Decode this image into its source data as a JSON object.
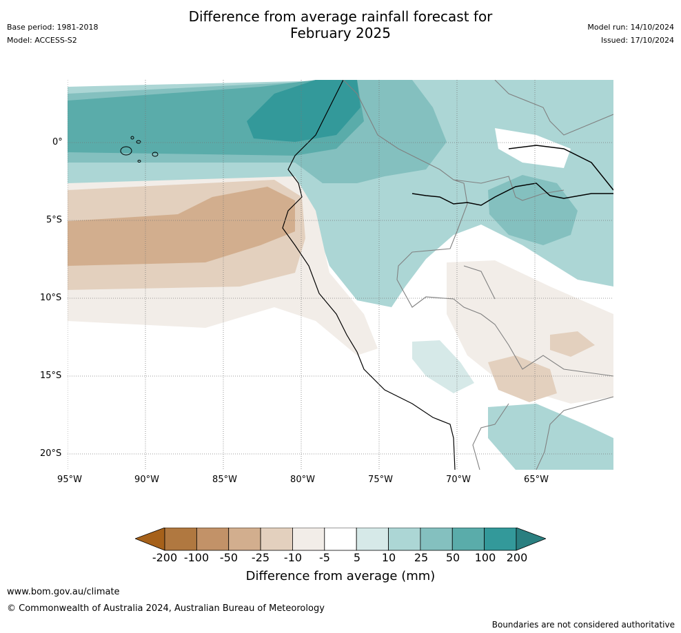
{
  "header": {
    "base_period": "Base period: 1981-2018",
    "model": "Model: ACCESS-S2",
    "title_line1": "Difference from average rainfall forecast for",
    "title_line2": "February 2025",
    "model_run": "Model run: 14/10/2024",
    "issued": "Issued: 17/10/2024"
  },
  "map": {
    "lat_labels": [
      "0°",
      "5°S",
      "10°S",
      "15°S",
      "20°S"
    ],
    "lon_labels": [
      "95°W",
      "90°W",
      "85°W",
      "80°W",
      "75°W",
      "70°W",
      "65°W"
    ]
  },
  "colorbar": {
    "tick_labels": [
      "-200",
      "-100",
      "-50",
      "-25",
      "-10",
      "-5",
      "5",
      "10",
      "25",
      "50",
      "100",
      "200"
    ],
    "colors": [
      "#a6611a",
      "#b07840",
      "#c29268",
      "#d2ae8e",
      "#e3d0be",
      "#f2ede8",
      "#ffffff",
      "#d6e9e8",
      "#acd6d5",
      "#84c0bf",
      "#5aacaa",
      "#33999a",
      "#2a7f80"
    ],
    "label": "Difference from average (mm)"
  },
  "footer": {
    "url": "www.bom.gov.au/climate",
    "copyright": "© Commonwealth of Australia 2024, Australian Bureau of Meteorology",
    "disclaimer": "Boundaries are not considered authoritative"
  }
}
